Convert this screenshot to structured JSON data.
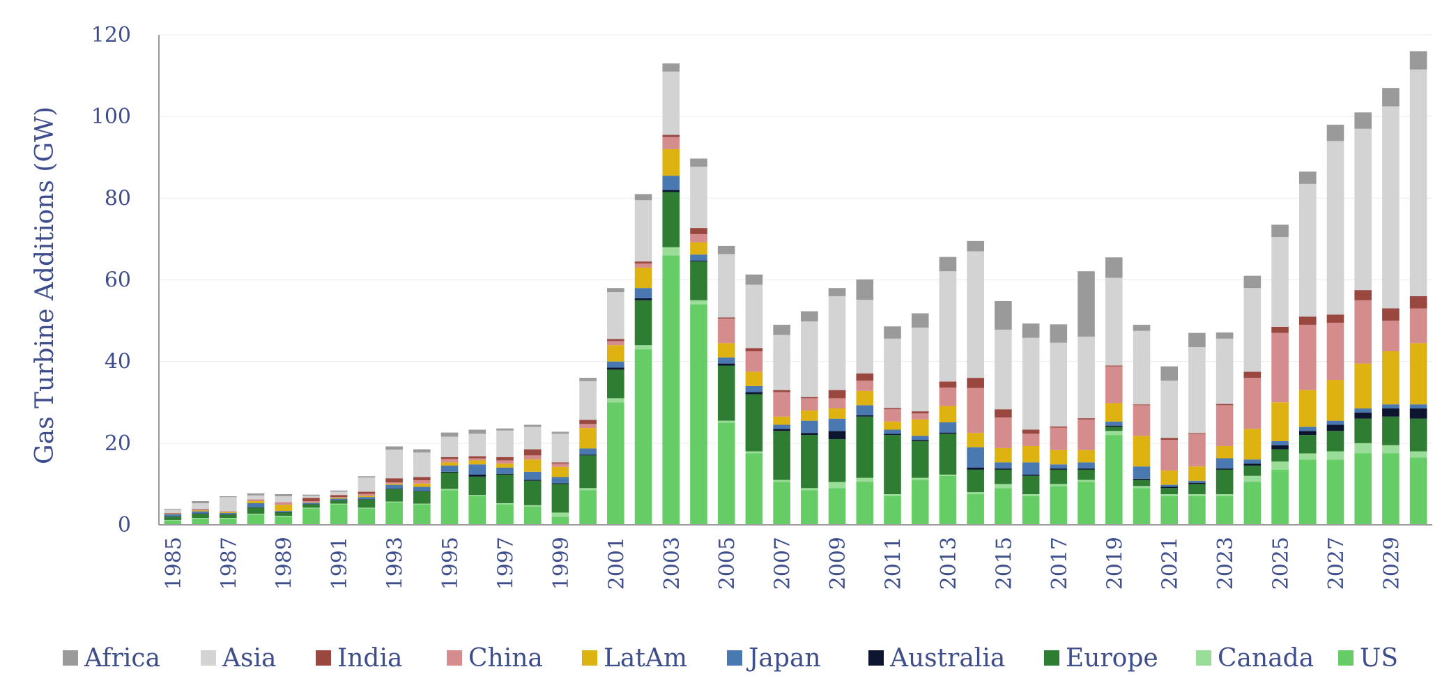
{
  "chart_data": {
    "type": "bar",
    "stacked": true,
    "title": "",
    "xlabel": "",
    "ylabel": "Gas Turbine Additions (GW)",
    "ylim": [
      0,
      120
    ],
    "yticks": [
      0,
      20,
      40,
      60,
      80,
      100,
      120
    ],
    "grid": true,
    "legend_position": "bottom",
    "categories": [
      "1985",
      "1986",
      "1987",
      "1988",
      "1989",
      "1990",
      "1991",
      "1992",
      "1993",
      "1994",
      "1995",
      "1996",
      "1997",
      "1998",
      "1999",
      "2000",
      "2001",
      "2002",
      "2003",
      "2004",
      "2005",
      "2006",
      "2007",
      "2008",
      "2009",
      "2010",
      "2011",
      "2012",
      "2013",
      "2014",
      "2015",
      "2016",
      "2017",
      "2018",
      "2019",
      "2020",
      "2021",
      "2022",
      "2023",
      "2024",
      "2025",
      "2026",
      "2027",
      "2028",
      "2029",
      "2030"
    ],
    "xtick_labels": [
      "1985",
      "1987",
      "1989",
      "1991",
      "1993",
      "1995",
      "1997",
      "1999",
      "2001",
      "2003",
      "2005",
      "2007",
      "2009",
      "2011",
      "2013",
      "2015",
      "2017",
      "2019",
      "2021",
      "2023",
      "2025",
      "2027",
      "2029"
    ],
    "legend_order": [
      "Africa",
      "Asia",
      "India",
      "China",
      "LatAm",
      "Japan",
      "Australia",
      "Europe",
      "Canada",
      "US"
    ],
    "series": [
      {
        "name": "US",
        "color": "#66CC66",
        "values": [
          1.0,
          1.5,
          1.5,
          2.5,
          2.0,
          4.0,
          5.0,
          4.0,
          5.5,
          5.0,
          8.5,
          7.0,
          5.0,
          4.5,
          2.0,
          8.5,
          30.0,
          43.0,
          66.0,
          54.0,
          25.0,
          17.5,
          10.5,
          8.5,
          9.0,
          10.5,
          7.0,
          11.0,
          12.0,
          7.5,
          9.0,
          7.0,
          9.5,
          10.5,
          22.0,
          9.0,
          7.0,
          7.0,
          7.0,
          10.5,
          13.5,
          16.0,
          16.0,
          17.5,
          17.5,
          16.5
        ]
      },
      {
        "name": "Canada",
        "color": "#99DD99",
        "values": [
          0.2,
          0.2,
          0.2,
          0.2,
          0.2,
          0.2,
          0.2,
          0.2,
          0.2,
          0.2,
          0.3,
          0.3,
          0.3,
          0.3,
          1.0,
          0.5,
          1.0,
          1.0,
          2.0,
          1.0,
          0.5,
          0.5,
          0.5,
          0.5,
          1.5,
          1.0,
          0.5,
          0.5,
          0.3,
          0.5,
          1.0,
          0.5,
          0.5,
          0.5,
          1.0,
          0.5,
          0.5,
          0.5,
          0.5,
          1.5,
          2.0,
          1.5,
          2.0,
          2.5,
          2.0,
          1.5
        ]
      },
      {
        "name": "Europe",
        "color": "#2E7D32",
        "values": [
          0.8,
          1.0,
          0.8,
          1.5,
          0.8,
          0.8,
          0.8,
          2.0,
          3.0,
          3.0,
          4.0,
          4.5,
          7.0,
          6.0,
          7.0,
          8.0,
          7.0,
          11.0,
          13.5,
          9.5,
          13.5,
          14.0,
          12.0,
          13.0,
          10.5,
          15.0,
          14.5,
          9.0,
          10.0,
          5.5,
          3.5,
          4.5,
          3.5,
          2.5,
          1.0,
          1.5,
          1.5,
          2.5,
          6.0,
          2.5,
          3.0,
          4.5,
          5.0,
          6.0,
          7.0,
          8.0
        ]
      },
      {
        "name": "Australia",
        "color": "#0D1530",
        "values": [
          0.1,
          0.1,
          0.1,
          0.1,
          0.1,
          0.1,
          0.1,
          0.1,
          0.1,
          0.1,
          0.2,
          0.5,
          0.2,
          0.2,
          0.2,
          0.2,
          0.5,
          0.5,
          0.5,
          0.2,
          0.5,
          0.5,
          0.5,
          0.5,
          2.0,
          0.3,
          0.3,
          0.3,
          0.3,
          0.5,
          0.3,
          0.3,
          0.3,
          0.3,
          0.3,
          0.3,
          0.3,
          0.3,
          0.3,
          0.5,
          1.0,
          1.0,
          1.5,
          1.5,
          2.0,
          2.5
        ]
      },
      {
        "name": "Japan",
        "color": "#4A78B0",
        "values": [
          0.5,
          0.5,
          0.3,
          1.0,
          0.3,
          0.3,
          0.3,
          0.5,
          1.0,
          1.0,
          1.5,
          2.5,
          1.5,
          2.0,
          1.5,
          1.5,
          1.5,
          2.5,
          3.5,
          1.5,
          1.5,
          1.5,
          1.0,
          3.0,
          3.0,
          2.5,
          1.0,
          1.0,
          2.5,
          5.0,
          1.5,
          3.0,
          1.0,
          1.5,
          1.0,
          3.0,
          0.5,
          0.5,
          2.5,
          1.0,
          1.0,
          1.0,
          1.0,
          1.0,
          1.0,
          1.0
        ]
      },
      {
        "name": "LatAm",
        "color": "#DDB211",
        "values": [
          0.1,
          0.2,
          0.2,
          0.5,
          1.5,
          0.1,
          0.2,
          0.3,
          0.3,
          0.8,
          0.8,
          1.0,
          1.0,
          3.0,
          2.5,
          5.0,
          4.0,
          5.0,
          6.5,
          3.0,
          3.5,
          3.5,
          2.0,
          2.5,
          2.5,
          3.5,
          2.0,
          4.0,
          4.0,
          3.5,
          3.5,
          4.0,
          3.5,
          3.0,
          4.5,
          7.5,
          3.5,
          3.5,
          3.0,
          7.5,
          9.5,
          9.0,
          10.0,
          11.0,
          13.0,
          15.0
        ]
      },
      {
        "name": "China",
        "color": "#D48C8C",
        "values": [
          0.1,
          0.1,
          0.1,
          0.3,
          0.5,
          0.3,
          0.2,
          0.5,
          0.3,
          0.8,
          0.8,
          0.5,
          0.8,
          1.0,
          0.8,
          1.0,
          1.0,
          1.0,
          3.0,
          2.0,
          6.0,
          5.0,
          6.0,
          3.0,
          2.5,
          2.5,
          3.0,
          1.5,
          4.5,
          11.0,
          7.5,
          3.0,
          5.5,
          7.5,
          9.0,
          7.5,
          7.5,
          8.0,
          10.0,
          12.5,
          17.0,
          16.0,
          14.0,
          15.5,
          7.5,
          8.5
        ]
      },
      {
        "name": "India",
        "color": "#99473F",
        "values": [
          0.1,
          0.2,
          0.1,
          0.1,
          0.1,
          0.8,
          0.5,
          0.5,
          1.0,
          0.8,
          0.5,
          0.5,
          0.8,
          1.5,
          0.3,
          1.0,
          0.5,
          0.5,
          0.5,
          1.5,
          0.3,
          0.8,
          0.5,
          0.3,
          2.0,
          1.8,
          0.3,
          0.5,
          1.5,
          2.5,
          2.0,
          1.0,
          0.3,
          0.3,
          0.2,
          0.2,
          0.5,
          0.2,
          0.3,
          1.5,
          1.5,
          2.0,
          2.0,
          2.5,
          3.0,
          3.0
        ]
      },
      {
        "name": "Asia",
        "color": "#D3D3D3",
        "values": [
          0.8,
          1.5,
          3.5,
          1.0,
          1.5,
          0.5,
          0.8,
          3.5,
          7.0,
          6.0,
          5.0,
          5.5,
          6.5,
          5.5,
          7.0,
          9.5,
          11.5,
          15.0,
          15.5,
          15.0,
          15.5,
          15.5,
          13.5,
          18.5,
          23.0,
          18.0,
          17.0,
          20.5,
          27.0,
          31.0,
          19.5,
          22.5,
          20.5,
          20.0,
          21.5,
          18.0,
          14.0,
          21.0,
          16.0,
          20.5,
          22.0,
          32.5,
          42.5,
          39.5,
          49.5,
          55.5
        ]
      },
      {
        "name": "Africa",
        "color": "#9A9A9A",
        "values": [
          0.2,
          0.5,
          0.2,
          0.5,
          0.5,
          0.3,
          0.3,
          0.3,
          0.8,
          0.8,
          1.0,
          1.0,
          0.5,
          0.5,
          0.5,
          0.8,
          1.0,
          1.5,
          2.0,
          2.0,
          2.0,
          2.5,
          2.5,
          2.5,
          2.0,
          5.0,
          3.0,
          3.5,
          3.5,
          2.5,
          7.0,
          3.5,
          4.5,
          16.0,
          5.0,
          1.5,
          3.5,
          3.5,
          1.5,
          3.0,
          3.0,
          3.0,
          4.0,
          4.0,
          4.5,
          4.5
        ]
      }
    ]
  }
}
